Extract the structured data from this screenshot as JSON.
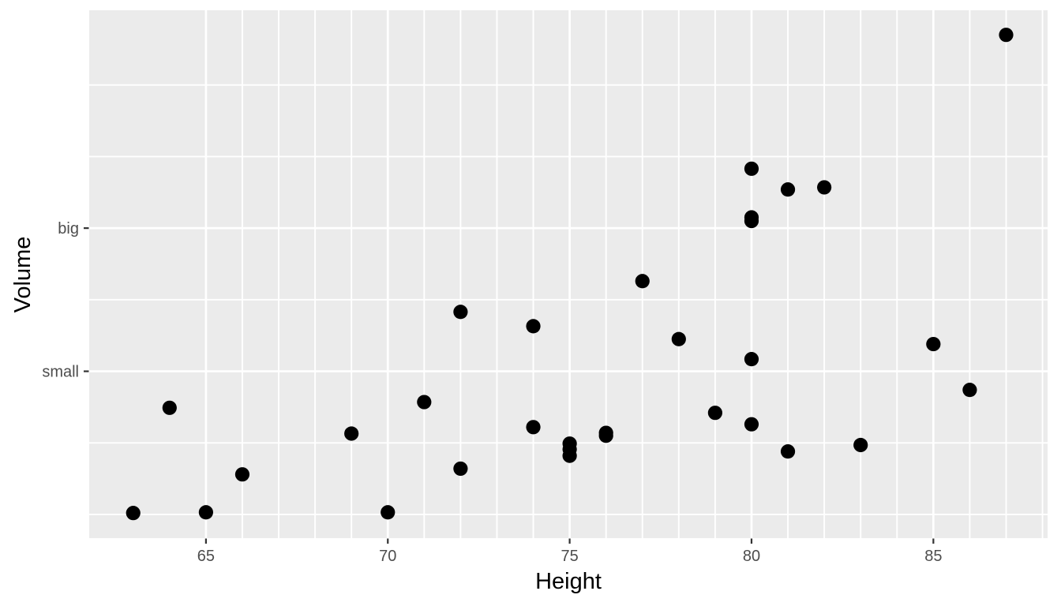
{
  "figure": {
    "background": "#FFFFFF",
    "panel_background": "#EBEBEB",
    "grid_color": "#FFFFFF",
    "point_color": "#000000",
    "axis_text_color": "#4D4D4D",
    "tick_mark_color": "#333333",
    "axis_title_color": "#000000"
  },
  "chart_data": {
    "type": "scatter",
    "title": "",
    "xlabel": "Height",
    "ylabel": "Volume",
    "xlim": [
      61.79,
      88.14
    ],
    "ylim": [
      6.69,
      80.44
    ],
    "grid": true,
    "legend": "none",
    "x_major_breaks": [
      65,
      70,
      75,
      80,
      85
    ],
    "x_major_labels": [
      "65",
      "70",
      "75",
      "80",
      "85"
    ],
    "x_minor_breaks": [
      66,
      67,
      68,
      69,
      71,
      72,
      73,
      74,
      76,
      77,
      78,
      79,
      81,
      82,
      83,
      84,
      86,
      87,
      88
    ],
    "y_major_breaks": [
      30,
      50
    ],
    "y_major_labels": [
      "small",
      "big"
    ],
    "y_minor_breaks": [
      10,
      20,
      40,
      60,
      70
    ],
    "points": [
      [
        70,
        10.3
      ],
      [
        65,
        10.3
      ],
      [
        63,
        10.2
      ],
      [
        72,
        16.4
      ],
      [
        81,
        18.8
      ],
      [
        83,
        19.7
      ],
      [
        66,
        15.6
      ],
      [
        75,
        18.2
      ],
      [
        80,
        22.6
      ],
      [
        75,
        19.9
      ],
      [
        79,
        24.2
      ],
      [
        76,
        21.0
      ],
      [
        76,
        21.4
      ],
      [
        69,
        21.3
      ],
      [
        75,
        19.1
      ],
      [
        74,
        22.2
      ],
      [
        85,
        33.8
      ],
      [
        86,
        27.4
      ],
      [
        71,
        25.7
      ],
      [
        64,
        24.9
      ],
      [
        78,
        34.5
      ],
      [
        80,
        31.7
      ],
      [
        74,
        36.3
      ],
      [
        72,
        38.3
      ],
      [
        77,
        42.6
      ],
      [
        81,
        55.4
      ],
      [
        82,
        55.7
      ],
      [
        80,
        58.3
      ],
      [
        80,
        51.5
      ],
      [
        80,
        51.0
      ],
      [
        87,
        77.0
      ]
    ]
  }
}
